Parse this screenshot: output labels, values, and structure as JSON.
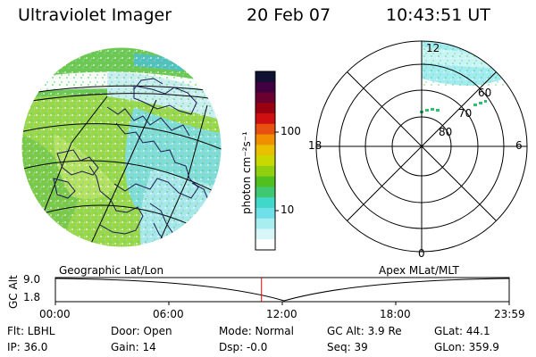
{
  "header": {
    "title": "Ultraviolet Imager",
    "date": "20 Feb 07",
    "time": "10:43:51 UT"
  },
  "colorbar": {
    "unit_label": "photon cm⁻²s⁻¹",
    "ticks": [
      "100",
      "10"
    ],
    "colors": [
      "#111133",
      "#400040",
      "#6a0030",
      "#9a0010",
      "#d01010",
      "#e85010",
      "#f09000",
      "#e8c000",
      "#c8d800",
      "#90d010",
      "#50c020",
      "#40c870",
      "#40d8c8",
      "#70e0e8",
      "#a8eef0",
      "#d8f6f8",
      "#ffffff"
    ]
  },
  "polar_plot": {
    "mlt_labels": {
      "top": "12",
      "bottom": "0",
      "left": "18",
      "right": "6"
    },
    "mlat_labels": [
      "60",
      "70",
      "80"
    ]
  },
  "timeline": {
    "left_label": "Geographic Lat/Lon",
    "right_label": "Apex MLat/MLT",
    "axis_title": "GC Alt",
    "y_ticks": [
      "9.0",
      "1.8"
    ],
    "x_ticks": [
      "00:00",
      "06:00",
      "12:00",
      "18:00",
      "23:59"
    ],
    "current_time_fraction": 0.4541,
    "marker_color": "#ff0000"
  },
  "status": {
    "flt": "Flt: LBHL",
    "door": "Door: Open",
    "mode": "Mode: Normal",
    "gc_alt": "GC Alt: 3.9 Re",
    "glat": "GLat:  44.1",
    "ip": "IP: 36.0",
    "gain": "Gain: 14",
    "dsp": "Dsp:  -0.0",
    "seq": "Seq: 39",
    "glon": "GLon: 359.9"
  }
}
